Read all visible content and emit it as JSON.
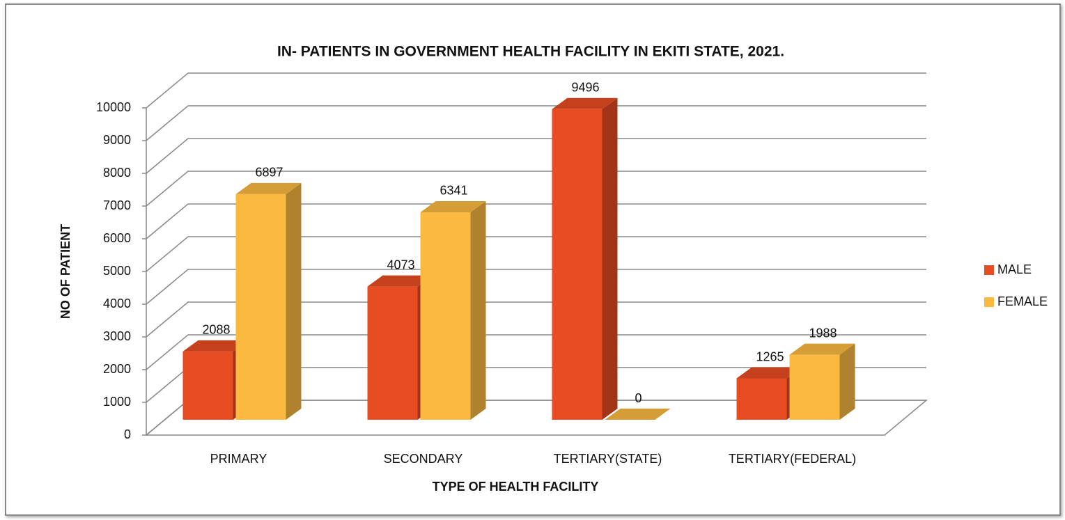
{
  "chart_data": {
    "type": "bar3d",
    "title": "IN- PATIENTS IN GOVERNMENT HEALTH FACILITY IN EKITI STATE, 2021.",
    "x_label": "TYPE OF HEALTH FACILITY",
    "y_label": "NO OF PATIENT",
    "categories": [
      "PRIMARY",
      "SECONDARY",
      "TERTIARY(STATE)",
      "TERTIARY(FEDERAL)"
    ],
    "series": [
      {
        "name": "MALE",
        "color": "#e84c22",
        "values": [
          2088,
          4073,
          9496,
          1265
        ]
      },
      {
        "name": "FEMALE",
        "color": "#fbb940",
        "values": [
          6897,
          6341,
          0,
          1988
        ]
      }
    ],
    "ylim": [
      0,
      10000
    ],
    "yticks": [
      0,
      1000,
      2000,
      3000,
      4000,
      5000,
      6000,
      7000,
      8000,
      9000,
      10000
    ],
    "grid": true,
    "legend": "right"
  }
}
